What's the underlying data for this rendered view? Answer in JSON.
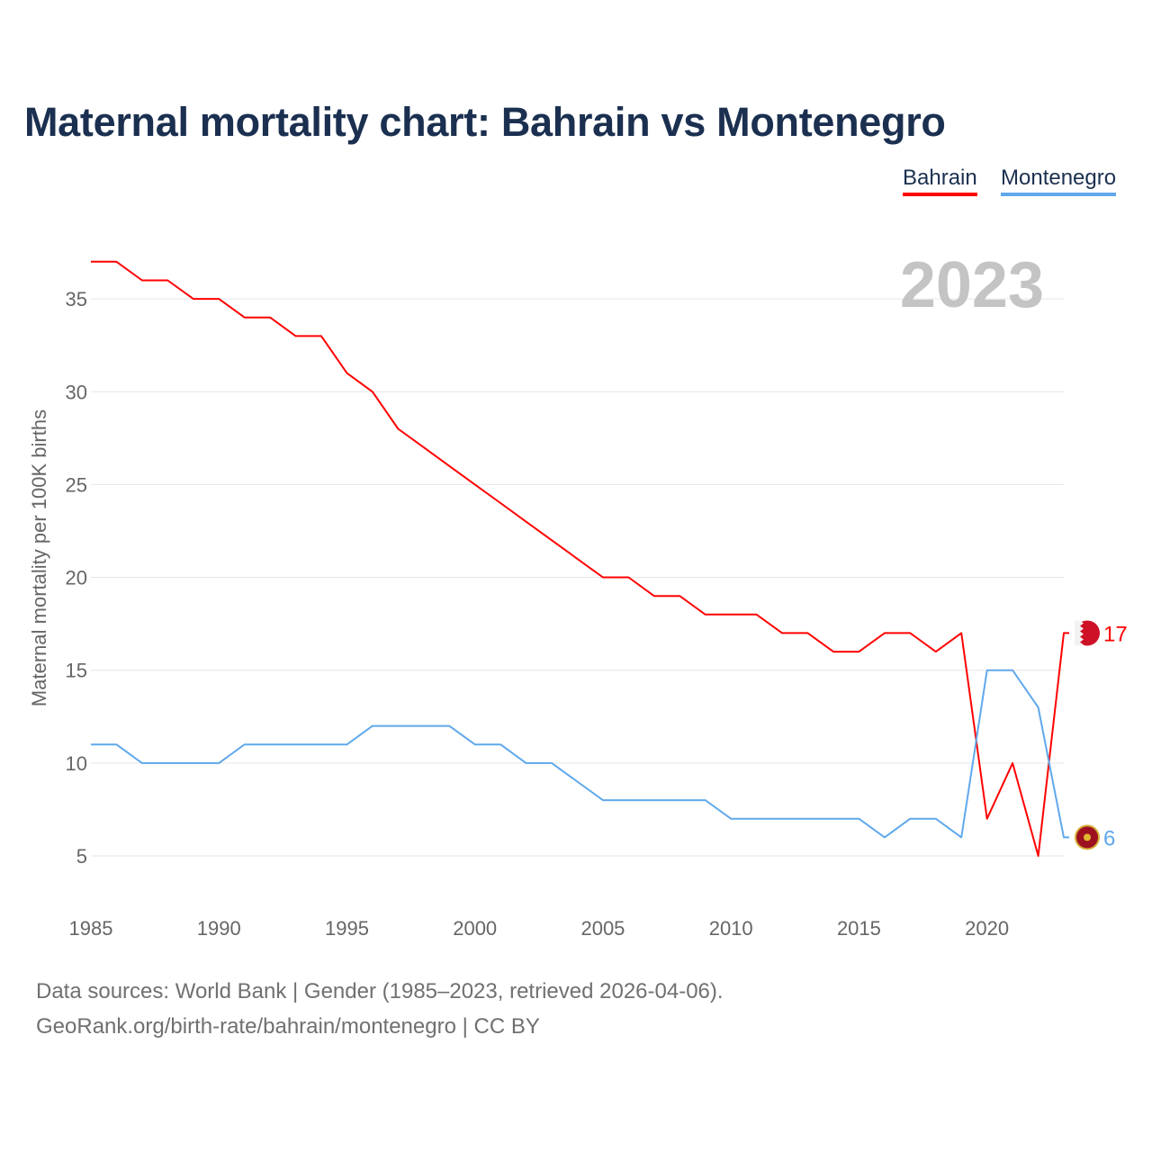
{
  "chart_data": {
    "type": "line",
    "title": "Maternal mortality chart: Bahrain vs Montenegro",
    "ylabel": "Maternal mortality per 100K births",
    "xlabel": "",
    "year_label": "2023",
    "xlim": [
      1985,
      2023
    ],
    "ylim": [
      2,
      38
    ],
    "x_ticks": [
      "1985",
      "1990",
      "1995",
      "2000",
      "2005",
      "2010",
      "2015",
      "2020"
    ],
    "y_ticks": [
      "5",
      "10",
      "15",
      "20",
      "25",
      "30",
      "35"
    ],
    "grid": true,
    "legend_position": "top-right",
    "x": [
      1985,
      1986,
      1987,
      1988,
      1989,
      1990,
      1991,
      1992,
      1993,
      1994,
      1995,
      1996,
      1997,
      1998,
      1999,
      2000,
      2001,
      2002,
      2003,
      2004,
      2005,
      2006,
      2007,
      2008,
      2009,
      2010,
      2011,
      2012,
      2013,
      2014,
      2015,
      2016,
      2017,
      2018,
      2019,
      2020,
      2021,
      2022,
      2023
    ],
    "series": [
      {
        "name": "Bahrain",
        "color": "#ff0000",
        "end_label": "17",
        "values": [
          37,
          37,
          36,
          36,
          35,
          35,
          34,
          34,
          33,
          33,
          31,
          30,
          28,
          27,
          26,
          25,
          24,
          23,
          22,
          21,
          20,
          20,
          19,
          19,
          18,
          18,
          18,
          17,
          17,
          16,
          16,
          17,
          17,
          16,
          17,
          7,
          10,
          5,
          17
        ]
      },
      {
        "name": "Montenegro",
        "color": "#60a8ec",
        "end_label": "6",
        "values": [
          11,
          11,
          10,
          10,
          10,
          10,
          11,
          11,
          11,
          11,
          11,
          12,
          12,
          12,
          12,
          11,
          11,
          10,
          10,
          9,
          8,
          8,
          8,
          8,
          8,
          7,
          7,
          7,
          7,
          7,
          7,
          6,
          7,
          7,
          6,
          15,
          15,
          13,
          6
        ]
      }
    ]
  },
  "footer": {
    "line1": "Data sources: World Bank | Gender (1985–2023, retrieved 2026-04-06).",
    "line2": "GeoRank.org/birth-rate/bahrain/montenegro | CC BY"
  }
}
